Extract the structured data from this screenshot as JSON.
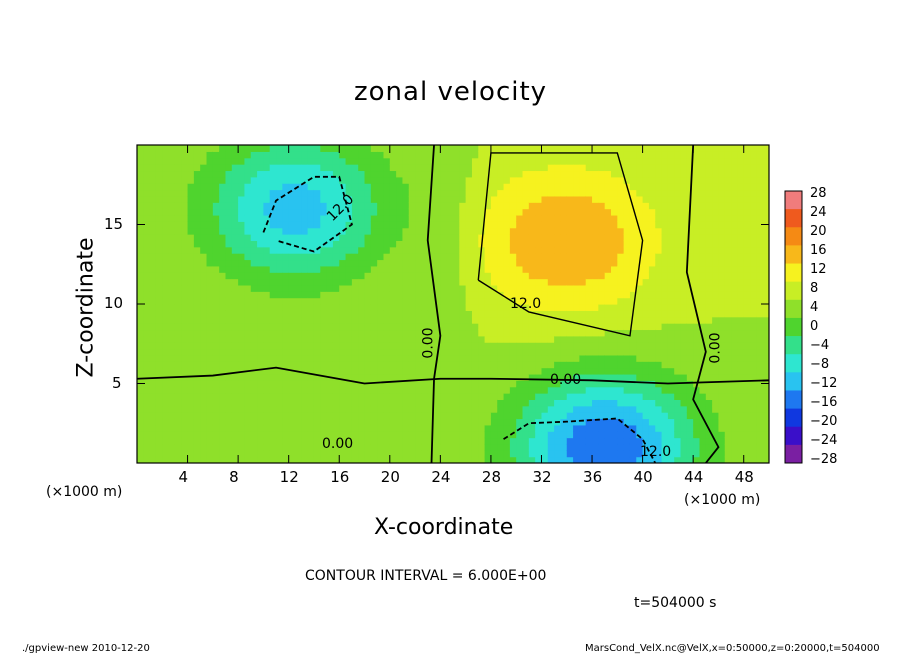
{
  "chart_data": {
    "type": "heatmap",
    "title": "zonal velocity",
    "xlabel": "X-coordinate",
    "ylabel": "Z-coordinate",
    "x_unit": "(×1000 m)",
    "y_unit": "(×1000 m)",
    "xlim": [
      0,
      50
    ],
    "ylim": [
      0,
      20
    ],
    "x_ticks": [
      "4",
      "8",
      "12",
      "16",
      "20",
      "24",
      "28",
      "32",
      "36",
      "40",
      "44",
      "48"
    ],
    "y_ticks": [
      "5",
      "10",
      "15"
    ],
    "x_tick_values": [
      4,
      8,
      12,
      16,
      20,
      24,
      28,
      32,
      36,
      40,
      44,
      48
    ],
    "y_tick_values": [
      5,
      10,
      15
    ],
    "colorbar_labels": [
      "28",
      "24",
      "20",
      "16",
      "12",
      "8",
      "4",
      "0",
      "−4",
      "−8",
      "−12",
      "−16",
      "−20",
      "−24",
      "−28"
    ],
    "colorbar_levels": [
      28,
      24,
      20,
      16,
      12,
      8,
      4,
      0,
      -4,
      -8,
      -12,
      -16,
      -20,
      -24,
      -28
    ],
    "contour_labels": [
      "12.0",
      "12.0",
      "0.00",
      "0.00",
      "0.00",
      "12.0",
      "0.00"
    ],
    "contour_interval_text": "CONTOUR INTERVAL = 6.000E+00",
    "time_text": "t=504000 s",
    "features": [
      {
        "name": "negative core upper-left",
        "x": 12.5,
        "z": 16,
        "value": -12
      },
      {
        "name": "positive core upper-middle",
        "x": 34,
        "z": 14,
        "value": 18
      },
      {
        "name": "negative core lower-middle",
        "x": 37,
        "z": 1,
        "value": -18
      },
      {
        "name": "positive near surface left",
        "x": 13,
        "z": 2,
        "value": 6
      }
    ]
  },
  "footer": {
    "left": "./gpview-new   2010-12-20",
    "right": "MarsCond_VelX.nc@VelX,x=0:50000,z=0:20000,t=504000"
  },
  "colors": {
    "scale": [
      "#7a1fa2",
      "#3a0fc9",
      "#1038e0",
      "#1e78f0",
      "#29c3f0",
      "#2ee6d0",
      "#33e08a",
      "#4fd42e",
      "#8fe02a",
      "#c8ee25",
      "#f6f21f",
      "#f8b81a",
      "#f58a14",
      "#ef5a1e",
      "#f07c7c"
    ]
  }
}
